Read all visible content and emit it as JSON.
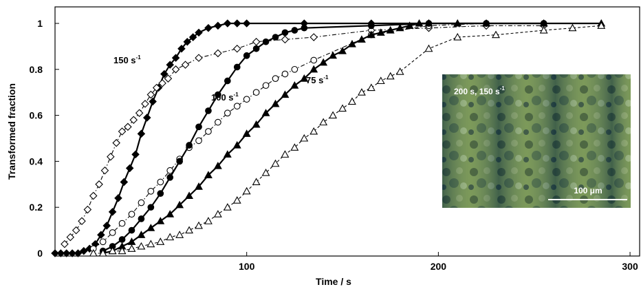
{
  "chart_data": {
    "type": "scatter",
    "xlabel": "Time / s",
    "ylabel": "Transformed fraction",
    "xlim": [
      0,
      305
    ],
    "ylim": [
      0,
      1.02
    ],
    "xticks": [
      "100",
      "200",
      "300"
    ],
    "yticks": [
      "0",
      "0.2",
      "0.4",
      "0.6",
      "0.8",
      "1"
    ],
    "grid": false,
    "annotations": [
      {
        "base": "150 s",
        "sup": "-1"
      },
      {
        "base": "100 s",
        "sup": "-1"
      },
      {
        "base": "75 s",
        "sup": "-1"
      }
    ],
    "inset": {
      "label_base": "200 s, 150 s",
      "label_sup": "-1",
      "scale_bar": "100 μm"
    },
    "series": [
      {
        "marker": "filled-diamond",
        "line": "solid",
        "color": "#000000",
        "x": [
          0,
          3,
          6,
          9,
          12,
          15,
          18,
          21,
          24,
          27,
          30,
          33,
          36,
          39,
          42,
          45,
          48,
          51,
          54,
          57,
          60,
          63,
          66,
          69,
          72,
          75,
          80,
          85,
          90,
          95,
          100,
          130,
          165,
          195
        ],
        "y": [
          0,
          0,
          0,
          0,
          0,
          0.01,
          0.02,
          0.04,
          0.08,
          0.12,
          0.18,
          0.24,
          0.31,
          0.37,
          0.43,
          0.52,
          0.59,
          0.66,
          0.72,
          0.78,
          0.82,
          0.85,
          0.89,
          0.92,
          0.94,
          0.96,
          0.98,
          0.99,
          1.0,
          1.0,
          1.0,
          1.0,
          1.0,
          1.0
        ]
      },
      {
        "marker": "open-diamond",
        "line": "dash-dot",
        "color": "#000000",
        "x": [
          5,
          8,
          11,
          14,
          17,
          20,
          23,
          26,
          29,
          32,
          35,
          38,
          41,
          44,
          47,
          50,
          53,
          56,
          59,
          63,
          68,
          75,
          85,
          95,
          105,
          120,
          135,
          165,
          195,
          225,
          255
        ],
        "y": [
          0.04,
          0.07,
          0.1,
          0.14,
          0.19,
          0.25,
          0.3,
          0.36,
          0.42,
          0.48,
          0.53,
          0.55,
          0.58,
          0.61,
          0.65,
          0.69,
          0.72,
          0.74,
          0.76,
          0.8,
          0.82,
          0.85,
          0.87,
          0.89,
          0.92,
          0.93,
          0.94,
          0.97,
          0.98,
          0.99,
          0.99
        ]
      },
      {
        "marker": "open-circle",
        "line": "dash-dot",
        "color": "#000000",
        "x": [
          20,
          25,
          30,
          35,
          40,
          45,
          50,
          55,
          60,
          65,
          70,
          75,
          80,
          85,
          90,
          95,
          100,
          105,
          110,
          115,
          120,
          125,
          135,
          165,
          195,
          225,
          255
        ],
        "y": [
          0.02,
          0.05,
          0.09,
          0.13,
          0.17,
          0.22,
          0.27,
          0.31,
          0.36,
          0.41,
          0.46,
          0.49,
          0.53,
          0.57,
          0.61,
          0.64,
          0.67,
          0.7,
          0.73,
          0.76,
          0.78,
          0.8,
          0.84,
          0.95,
          0.99,
          1.0,
          1.0
        ]
      },
      {
        "marker": "filled-circle",
        "line": "solid",
        "color": "#000000",
        "x": [
          25,
          30,
          35,
          40,
          45,
          50,
          55,
          60,
          65,
          70,
          75,
          80,
          85,
          90,
          95,
          100,
          105,
          110,
          115,
          120,
          125,
          130,
          165,
          195,
          225,
          255
        ],
        "y": [
          0.01,
          0.03,
          0.06,
          0.1,
          0.15,
          0.2,
          0.26,
          0.33,
          0.4,
          0.47,
          0.55,
          0.62,
          0.69,
          0.75,
          0.81,
          0.86,
          0.89,
          0.92,
          0.94,
          0.96,
          0.97,
          0.98,
          0.99,
          1.0,
          1.0,
          1.0
        ]
      },
      {
        "marker": "filled-triangle",
        "line": "solid",
        "color": "#000000",
        "x": [
          25,
          30,
          35,
          40,
          45,
          50,
          55,
          60,
          65,
          70,
          75,
          80,
          85,
          90,
          95,
          100,
          105,
          110,
          115,
          120,
          125,
          130,
          135,
          140,
          145,
          150,
          155,
          160,
          165,
          170,
          175,
          180,
          185,
          190,
          195,
          210,
          225,
          255,
          285
        ],
        "y": [
          0,
          0.01,
          0.03,
          0.05,
          0.08,
          0.11,
          0.14,
          0.17,
          0.21,
          0.25,
          0.29,
          0.34,
          0.38,
          0.43,
          0.47,
          0.52,
          0.56,
          0.61,
          0.65,
          0.69,
          0.73,
          0.76,
          0.8,
          0.83,
          0.86,
          0.88,
          0.91,
          0.93,
          0.95,
          0.96,
          0.97,
          0.98,
          0.99,
          1.0,
          1.0,
          1.0,
          1.0,
          1.0,
          1.0
        ]
      },
      {
        "marker": "open-triangle",
        "line": "dashed",
        "color": "#000000",
        "x": [
          20,
          25,
          30,
          35,
          40,
          45,
          50,
          55,
          60,
          65,
          70,
          75,
          80,
          85,
          90,
          95,
          100,
          105,
          110,
          115,
          120,
          125,
          130,
          135,
          140,
          145,
          150,
          155,
          160,
          165,
          170,
          175,
          180,
          195,
          210,
          230,
          255,
          270,
          285
        ],
        "y": [
          0,
          0,
          0.01,
          0.01,
          0.02,
          0.03,
          0.04,
          0.05,
          0.07,
          0.08,
          0.1,
          0.12,
          0.14,
          0.17,
          0.2,
          0.23,
          0.27,
          0.31,
          0.35,
          0.39,
          0.43,
          0.46,
          0.5,
          0.53,
          0.57,
          0.6,
          0.63,
          0.66,
          0.7,
          0.72,
          0.75,
          0.77,
          0.79,
          0.89,
          0.94,
          0.95,
          0.97,
          0.98,
          0.99
        ]
      }
    ]
  }
}
